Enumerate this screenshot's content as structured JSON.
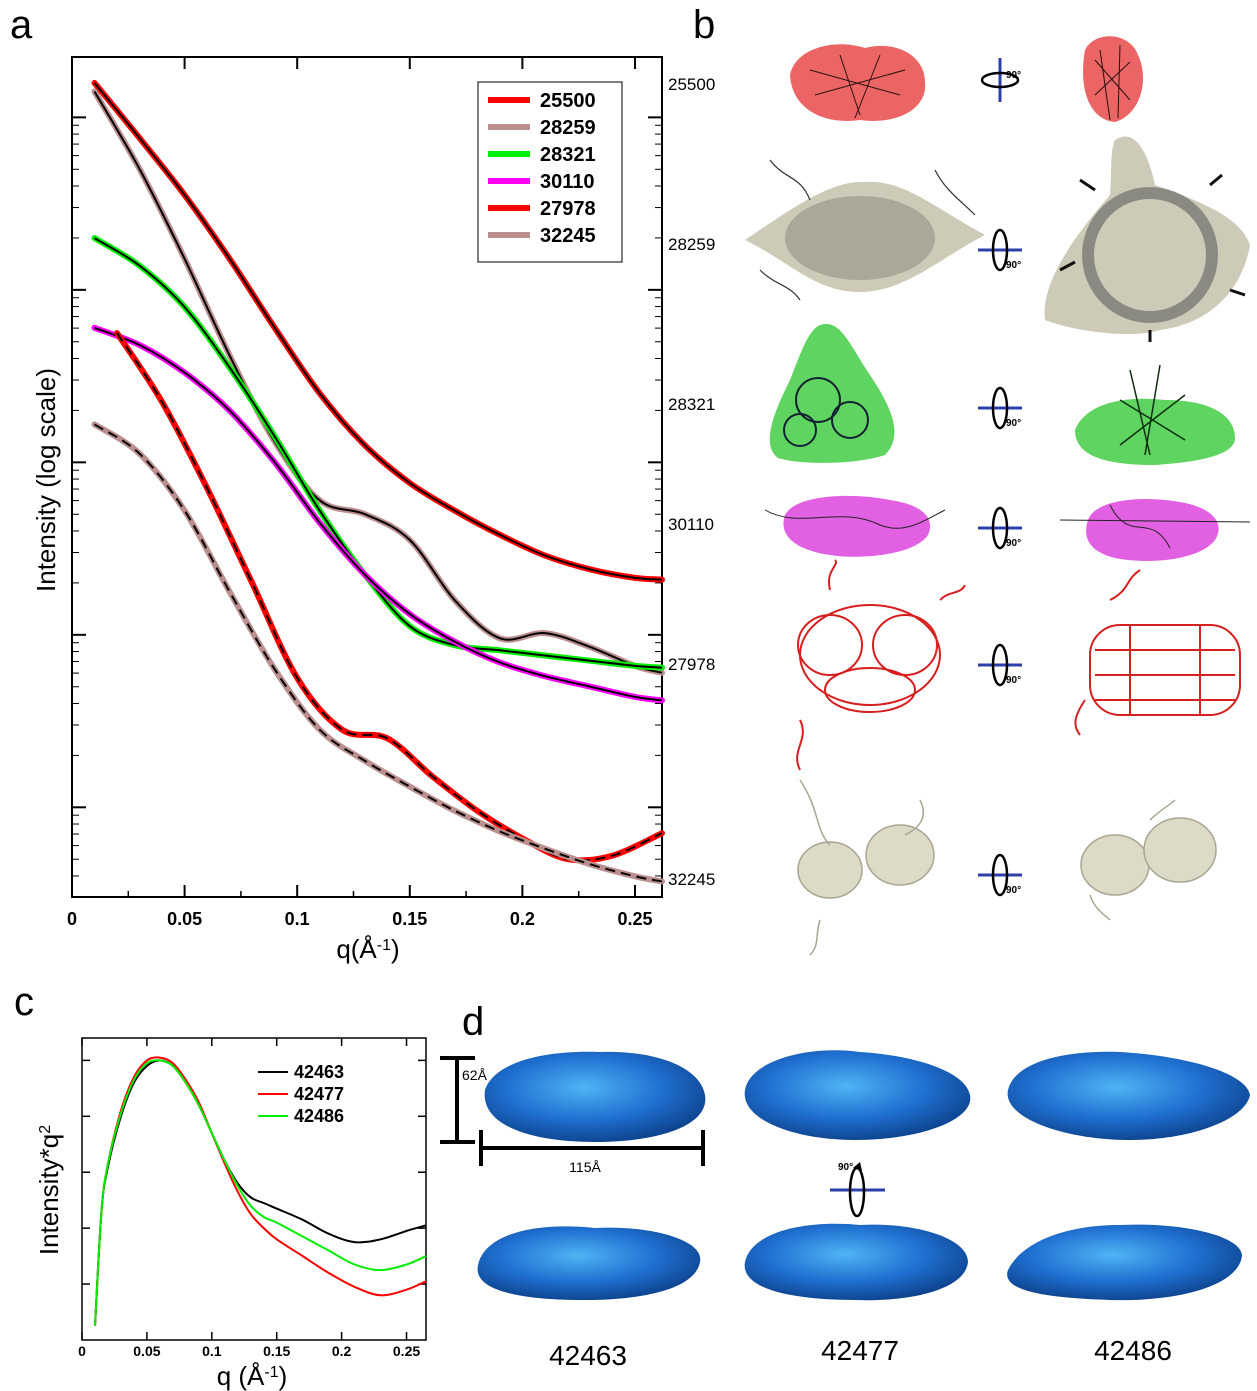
{
  "panels": {
    "a": "a",
    "b": "b",
    "c": "c",
    "d": "d"
  },
  "chart_data": [
    {
      "panel": "a",
      "type": "line",
      "xlabel": "q(Å",
      "xlabel_sup": "-1",
      "xlabel_close": ")",
      "ylabel": "Intensity (log scale)",
      "xlim": [
        0,
        0.262
      ],
      "x_ticks": [
        "0",
        "0.05",
        "0.1",
        "0.15",
        "0.2",
        "0.25"
      ],
      "y_scale": "log",
      "legend_position": "top-right",
      "series": [
        {
          "name": "25500",
          "color": "#ff0000",
          "fit": "solid",
          "x": [
            0.01,
            0.03,
            0.05,
            0.07,
            0.09,
            0.11,
            0.13,
            0.15,
            0.17,
            0.19,
            0.21,
            0.23,
            0.25,
            0.262
          ],
          "y": [
            5.2,
            4.88,
            4.55,
            4.18,
            3.78,
            3.4,
            3.1,
            2.88,
            2.72,
            2.58,
            2.46,
            2.38,
            2.33,
            2.32
          ]
        },
        {
          "name": "28259",
          "color": "#bc8f8f",
          "fit": "solid",
          "x": [
            0.01,
            0.03,
            0.05,
            0.07,
            0.09,
            0.11,
            0.13,
            0.15,
            0.17,
            0.19,
            0.21,
            0.23,
            0.25,
            0.262
          ],
          "y": [
            5.15,
            4.7,
            4.18,
            3.62,
            3.12,
            2.78,
            2.7,
            2.55,
            2.2,
            1.98,
            2.01,
            1.93,
            1.82,
            1.78
          ]
        },
        {
          "name": "28321",
          "color": "#00ee00",
          "fit": "solid",
          "x": [
            0.01,
            0.03,
            0.05,
            0.07,
            0.09,
            0.11,
            0.13,
            0.15,
            0.17,
            0.19,
            0.21,
            0.23,
            0.25,
            0.262
          ],
          "y": [
            4.3,
            4.14,
            3.9,
            3.55,
            3.15,
            2.72,
            2.35,
            2.05,
            1.94,
            1.91,
            1.88,
            1.85,
            1.82,
            1.81
          ]
        },
        {
          "name": "30110",
          "color": "#ff00ff",
          "fit": "solid",
          "x": [
            0.01,
            0.03,
            0.05,
            0.07,
            0.09,
            0.11,
            0.13,
            0.15,
            0.17,
            0.19,
            0.21,
            0.23,
            0.25,
            0.262
          ],
          "y": [
            3.78,
            3.68,
            3.52,
            3.3,
            3.0,
            2.65,
            2.35,
            2.12,
            1.96,
            1.84,
            1.76,
            1.7,
            1.64,
            1.62
          ]
        },
        {
          "name": "27978",
          "color": "#ff0000",
          "fit": "dashed",
          "x": [
            0.02,
            0.04,
            0.06,
            0.08,
            0.1,
            0.12,
            0.14,
            0.16,
            0.18,
            0.2,
            0.22,
            0.24,
            0.262
          ],
          "y": [
            3.75,
            3.35,
            2.85,
            2.3,
            1.75,
            1.45,
            1.4,
            1.18,
            0.98,
            0.82,
            0.7,
            0.72,
            0.85
          ]
        },
        {
          "name": "32245",
          "color": "#bc8f8f",
          "fit": "dashed",
          "x": [
            0.01,
            0.03,
            0.05,
            0.07,
            0.09,
            0.11,
            0.13,
            0.15,
            0.17,
            0.19,
            0.21,
            0.23,
            0.25,
            0.262
          ],
          "y": [
            3.22,
            3.05,
            2.72,
            2.25,
            1.8,
            1.45,
            1.27,
            1.12,
            0.98,
            0.86,
            0.76,
            0.67,
            0.6,
            0.57
          ]
        }
      ]
    },
    {
      "panel": "c",
      "type": "line",
      "xlabel": "q (Å",
      "xlabel_sup": "-1",
      "xlabel_close": ")",
      "ylabel": "Intensity*q",
      "ylabel_sup": "2",
      "xlim": [
        0,
        0.265
      ],
      "x_ticks": [
        "0",
        "0.05",
        "0.1",
        "0.15",
        "0.2",
        "0.25"
      ],
      "legend_position": "top-right",
      "series": [
        {
          "name": "42463",
          "color": "#000000",
          "x": [
            0.01,
            0.015,
            0.02,
            0.03,
            0.04,
            0.05,
            0.06,
            0.07,
            0.08,
            0.09,
            0.1,
            0.11,
            0.12,
            0.13,
            0.14,
            0.15,
            0.17,
            0.19,
            0.21,
            0.23,
            0.25,
            0.265
          ],
          "y": [
            0.05,
            0.46,
            0.62,
            0.8,
            0.92,
            0.98,
            1.0,
            0.98,
            0.92,
            0.84,
            0.74,
            0.64,
            0.56,
            0.51,
            0.49,
            0.47,
            0.43,
            0.38,
            0.35,
            0.36,
            0.39,
            0.41
          ]
        },
        {
          "name": "42477",
          "color": "#ff0000",
          "x": [
            0.01,
            0.015,
            0.02,
            0.03,
            0.04,
            0.05,
            0.06,
            0.07,
            0.08,
            0.09,
            0.1,
            0.11,
            0.12,
            0.13,
            0.14,
            0.15,
            0.17,
            0.19,
            0.21,
            0.23,
            0.25,
            0.265
          ],
          "y": [
            0.05,
            0.46,
            0.63,
            0.82,
            0.94,
            1.0,
            1.01,
            0.99,
            0.93,
            0.85,
            0.74,
            0.63,
            0.53,
            0.45,
            0.4,
            0.36,
            0.3,
            0.24,
            0.19,
            0.16,
            0.18,
            0.21
          ]
        },
        {
          "name": "42486",
          "color": "#00ee00",
          "x": [
            0.01,
            0.015,
            0.02,
            0.03,
            0.04,
            0.05,
            0.06,
            0.07,
            0.08,
            0.09,
            0.1,
            0.11,
            0.12,
            0.13,
            0.14,
            0.15,
            0.17,
            0.19,
            0.21,
            0.23,
            0.25,
            0.265
          ],
          "y": [
            0.05,
            0.46,
            0.63,
            0.81,
            0.93,
            0.99,
            1.0,
            0.98,
            0.92,
            0.84,
            0.74,
            0.64,
            0.55,
            0.48,
            0.44,
            0.42,
            0.37,
            0.32,
            0.27,
            0.25,
            0.27,
            0.3
          ]
        }
      ]
    }
  ],
  "panel_b": {
    "row_labels": [
      "25500",
      "28259",
      "28321",
      "30110",
      "27978",
      "32245"
    ],
    "row_colors": [
      "#e84a4a",
      "#c8c5b0",
      "#44cc44",
      "#dd44dd",
      "#d61f1f",
      "#c8c5b0"
    ],
    "rotation_label": "90°"
  },
  "panel_d": {
    "height_label": "62Å",
    "width_label": "115Å",
    "rotation_label": "90°",
    "model_labels": [
      "42463",
      "42477",
      "42486"
    ],
    "model_color": "#1f6fd0"
  }
}
